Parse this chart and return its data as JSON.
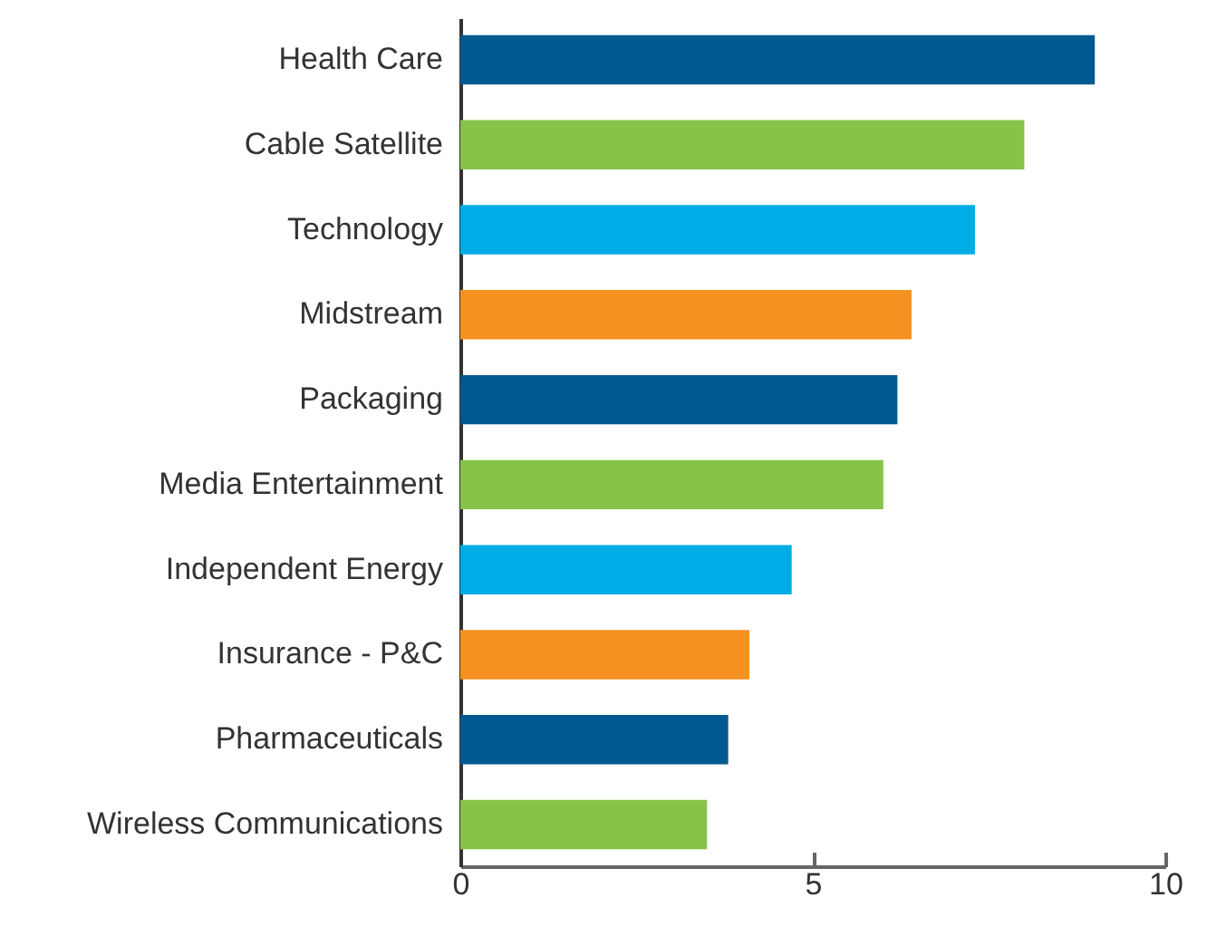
{
  "chart_data": {
    "type": "bar",
    "orientation": "horizontal",
    "categories": [
      "Health Care",
      "Cable Satellite",
      "Technology",
      "Midstream",
      "Packaging",
      "Media Entertainment",
      "Independent Energy",
      "Insurance - P&C",
      "Pharmaceuticals",
      "Wireless Communications"
    ],
    "values": [
      9.0,
      8.0,
      7.3,
      6.4,
      6.2,
      6.0,
      4.7,
      4.1,
      3.8,
      3.5
    ],
    "colors": [
      "#005a8f",
      "#86c449",
      "#00ace6",
      "#f59120",
      "#005a8f",
      "#86c449",
      "#00ace6",
      "#f59120",
      "#005a8f",
      "#86c449"
    ],
    "xlim": [
      0,
      10
    ],
    "xticks": [
      0,
      5,
      10
    ],
    "grid": false
  }
}
